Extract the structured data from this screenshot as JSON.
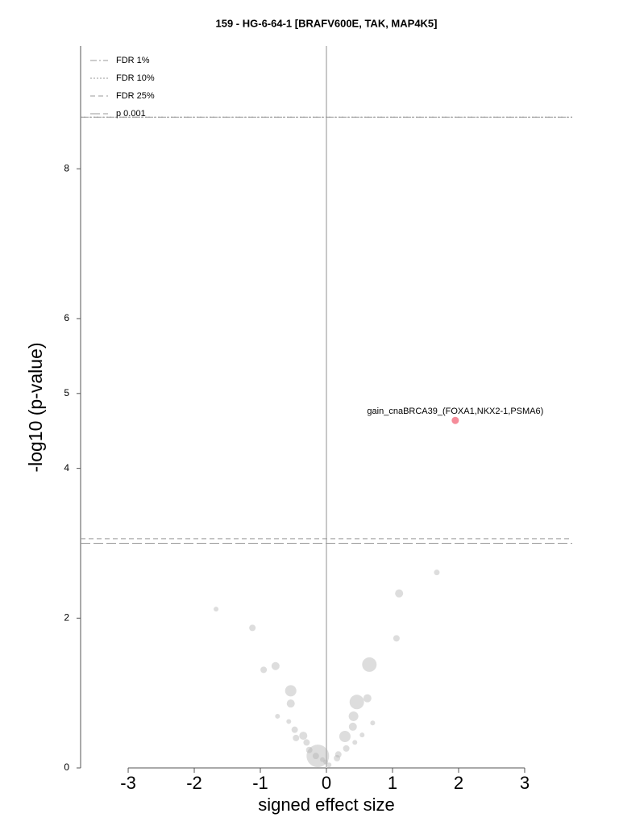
{
  "chart_data": {
    "type": "scatter",
    "title": "159 - HG-6-64-1 [BRAFV600E, TAK, MAP4K5]",
    "x_label": "signed effect size",
    "y_label": "-log10 (p-value)",
    "xlim": [
      -3.72,
      3.72
    ],
    "ylim": [
      0,
      9.64
    ],
    "xticks": [
      -3,
      -2,
      -1,
      0,
      1,
      2,
      3
    ],
    "yticks": [
      0,
      2,
      4,
      5,
      6,
      8
    ],
    "reference_lines": [
      {
        "name": "FDR 1%",
        "value": 8.69,
        "dash": "dashdot",
        "color": "#999999"
      },
      {
        "name": "FDR 10%",
        "value": 8.69,
        "dash": "dotted",
        "color": "#999999"
      },
      {
        "name": "FDR 25%",
        "value": 3.06,
        "dash": "dashed",
        "color": "#999999"
      },
      {
        "name": "p 0.001",
        "value": 3.0,
        "dash": "longdash",
        "color": "#999999"
      }
    ],
    "legend": "upper left",
    "series": [
      {
        "color": "#b4b4b4",
        "x": [
          1.67,
          1.1,
          -1.67,
          -1.12,
          1.06,
          -0.77,
          -0.95,
          0.65,
          -0.54,
          -0.54,
          0.46,
          0.62,
          0.41,
          -0.74,
          0.7,
          0.4,
          -0.57,
          0.28,
          0.54,
          -0.48,
          -0.35,
          -0.46,
          -0.3,
          0.43,
          0.3,
          0.18,
          -0.13,
          -0.16,
          -0.26,
          -0.01,
          0.04,
          -0.06,
          0.16
        ],
        "values": [
          2.61,
          2.33,
          2.12,
          1.87,
          1.73,
          1.36,
          1.31,
          1.38,
          1.03,
          0.86,
          0.88,
          0.93,
          0.69,
          0.69,
          0.6,
          0.55,
          0.62,
          0.42,
          0.44,
          0.51,
          0.43,
          0.4,
          0.34,
          0.34,
          0.26,
          0.18,
          0.16,
          0.16,
          0.24,
          0.08,
          0.04,
          0.11,
          0.13
        ],
        "sizes": [
          3.5,
          5,
          3,
          4,
          4,
          5,
          4,
          9,
          7,
          5,
          9,
          5,
          6,
          3,
          3,
          5,
          3,
          7,
          3,
          4,
          5,
          4,
          4,
          3,
          4,
          4,
          14,
          4,
          4,
          3,
          3,
          3,
          4
        ]
      },
      {
        "color": "#f4808f",
        "x": [
          1.95
        ],
        "values": [
          4.64
        ],
        "sizes": [
          4.5
        ],
        "labels": [
          "gain_cnaBRCA39_(FOXA1,NKX2-1,PSMA6)"
        ]
      }
    ]
  }
}
